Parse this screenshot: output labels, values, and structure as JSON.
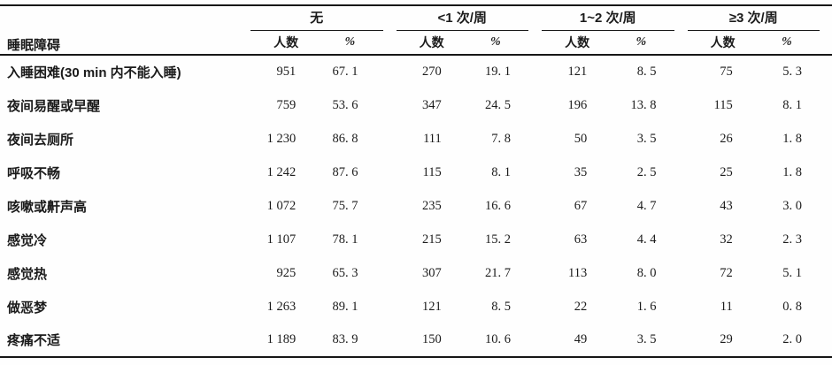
{
  "page": {
    "background": "#fefefe",
    "text_color": "#1b1b1b",
    "rule_color": "#161616"
  },
  "table": {
    "row_header": "睡眠障碍",
    "col_groups": [
      {
        "label": "无"
      },
      {
        "label": "<1 次/周"
      },
      {
        "label": "1~2 次/周"
      },
      {
        "label": "≥3 次/周"
      }
    ],
    "sub_headers": {
      "count": "人数",
      "percent": "%"
    },
    "rows": [
      {
        "label": "入睡困难(30 min 内不能入睡)",
        "values": [
          "951",
          "67. 1",
          "270",
          "19. 1",
          "121",
          "8. 5",
          "75",
          "5. 3"
        ]
      },
      {
        "label": "夜间易醒或早醒",
        "values": [
          "759",
          "53. 6",
          "347",
          "24. 5",
          "196",
          "13. 8",
          "115",
          "8. 1"
        ]
      },
      {
        "label": "夜间去厕所",
        "values": [
          "1 230",
          "86. 8",
          "111",
          "7. 8",
          "50",
          "3. 5",
          "26",
          "1. 8"
        ]
      },
      {
        "label": "呼吸不畅",
        "values": [
          "1 242",
          "87. 6",
          "115",
          "8. 1",
          "35",
          "2. 5",
          "25",
          "1. 8"
        ]
      },
      {
        "label": "咳嗽或鼾声高",
        "values": [
          "1 072",
          "75. 7",
          "235",
          "16. 6",
          "67",
          "4. 7",
          "43",
          "3. 0"
        ]
      },
      {
        "label": "感觉冷",
        "values": [
          "1 107",
          "78. 1",
          "215",
          "15. 2",
          "63",
          "4. 4",
          "32",
          "2. 3"
        ]
      },
      {
        "label": "感觉热",
        "values": [
          "925",
          "65. 3",
          "307",
          "21. 7",
          "113",
          "8. 0",
          "72",
          "5. 1"
        ]
      },
      {
        "label": "做恶梦",
        "values": [
          "1 263",
          "89. 1",
          "121",
          "8. 5",
          "22",
          "1. 6",
          "11",
          "0. 8"
        ]
      },
      {
        "label": "疼痛不适",
        "values": [
          "1 189",
          "83. 9",
          "150",
          "10. 6",
          "49",
          "3. 5",
          "29",
          "2. 0"
        ]
      }
    ]
  }
}
